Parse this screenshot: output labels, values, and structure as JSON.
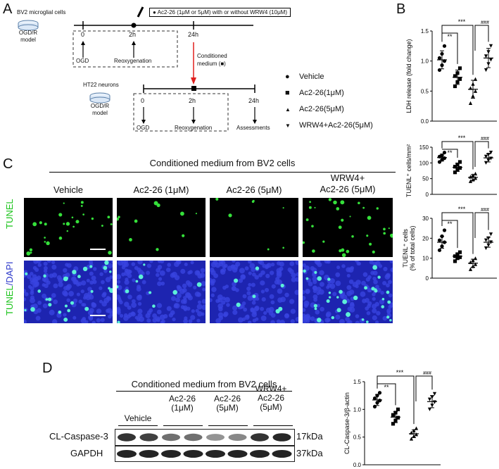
{
  "panels": {
    "a": "A",
    "b": "B",
    "c": "C",
    "d": "D"
  },
  "panel_a": {
    "bv2_title": "BV2 microglial cells",
    "bv2_model": "OGD/R\nmodel",
    "treatment": "Ac2-26 (1μM or 5μM) with or without WRW4 (10μM)",
    "t0": "0",
    "t2h": "2h",
    "t24h": "24h",
    "ogd": "OGD",
    "reox": "Reoxygenation",
    "conditioned": "Conditioned\nmedium (■)",
    "ht22_title": "HT22 neurons",
    "ht22_model": "OGD/R\nmodel",
    "b_t0": "0",
    "b_t2h": "2h",
    "b_t24h": "24h",
    "b_ogd": "OGD",
    "b_reox": "Reoxygenation",
    "assess": "Assessments",
    "legend": [
      {
        "marker": "●",
        "label": "Vehicle"
      },
      {
        "marker": "■",
        "label": "Ac2-26(1μM)"
      },
      {
        "marker": "▲",
        "label": "Ac2-26(5μM)"
      },
      {
        "marker": "▼",
        "label": "WRW4+Ac2-26(5μM)"
      }
    ]
  },
  "panel_c": {
    "header": "Conditioned medium from BV2 cells",
    "columns": [
      "Vehicle",
      "Ac2-26 (1μM)",
      "Ac2-26 (5μM)",
      "WRW4+\nAc2-26 (5μM)"
    ],
    "row1_label": "TUNEL",
    "row2_label_a": "TUNEL",
    "row2_label_b": "/DAPI"
  },
  "panel_d": {
    "header": "Conditioned medium from BV2 cells",
    "columns": [
      "Vehicle",
      "Ac2-26\n(1μM)",
      "Ac2-26\n(5μM)",
      "WRW4+\nAc2-26\n(5μM)"
    ],
    "row1": "CL-Caspase-3",
    "row1_kda": "17kDa",
    "row2": "GAPDH",
    "row2_kda": "37kDa"
  },
  "chart_data": [
    {
      "type": "scatter",
      "ylabel": "LDH release (fold change)",
      "ylim": [
        0,
        1.5
      ],
      "ticks": [
        "0.0",
        "0.5",
        "1.0",
        "1.5"
      ],
      "groups": [
        "Vehicle",
        "Ac2-26(1μM)",
        "Ac2-26(5μM)",
        "WRW4+Ac2-26(5μM)"
      ],
      "means": [
        1.02,
        0.73,
        0.53,
        1.05
      ],
      "sd": [
        0.15,
        0.12,
        0.15,
        0.16
      ],
      "points": [
        [
          0.85,
          0.93,
          1.0,
          1.05,
          1.12,
          1.25
        ],
        [
          0.58,
          0.65,
          0.7,
          0.75,
          0.8,
          0.88
        ],
        [
          0.3,
          0.42,
          0.5,
          0.55,
          0.62,
          0.7
        ],
        [
          0.85,
          0.95,
          1.02,
          1.08,
          1.15,
          1.25
        ]
      ],
      "sig": [
        "**",
        "***",
        "###"
      ]
    },
    {
      "type": "scatter",
      "ylabel": "TUENL⁺ cells/mm²",
      "ylim": [
        0,
        150
      ],
      "ticks": [
        "0",
        "50",
        "100",
        "150"
      ],
      "means": [
        117,
        86,
        54,
        116
      ],
      "sd": [
        11,
        13,
        9,
        13
      ],
      "points": [
        [
          103,
          110,
          115,
          120,
          124,
          133
        ],
        [
          70,
          78,
          84,
          88,
          95,
          103
        ],
        [
          42,
          47,
          52,
          56,
          61,
          66
        ],
        [
          100,
          108,
          114,
          120,
          126,
          133
        ]
      ],
      "sig": [
        "**",
        "***",
        "###"
      ]
    },
    {
      "type": "scatter",
      "ylabel": "TUENL⁺ cells\n(% of total cells)",
      "ylim": [
        0,
        30
      ],
      "ticks": [
        "0",
        "10",
        "20",
        "30"
      ],
      "means": [
        18,
        11,
        7.5,
        18
      ],
      "sd": [
        3,
        1.5,
        2,
        2.5
      ],
      "points": [
        [
          14,
          16,
          18,
          19,
          21,
          24
        ],
        [
          8.5,
          10,
          10.5,
          11,
          12,
          13
        ],
        [
          4.5,
          6,
          7,
          8,
          9,
          10
        ],
        [
          15,
          16.5,
          18,
          19,
          20,
          22
        ]
      ],
      "sig": [
        "**",
        "***",
        "###"
      ]
    },
    {
      "type": "scatter",
      "ylabel": "CL-Caspase-3/β-actin",
      "ylim": [
        0,
        1.5
      ],
      "ticks": [
        "0.0",
        "0.5",
        "1.0",
        "1.5"
      ],
      "means": [
        1.17,
        0.86,
        0.56,
        1.14
      ],
      "sd": [
        0.1,
        0.1,
        0.07,
        0.11
      ],
      "points": [
        [
          1.05,
          1.12,
          1.16,
          1.2,
          1.25,
          1.3
        ],
        [
          0.74,
          0.8,
          0.85,
          0.9,
          0.94,
          1.0
        ],
        [
          0.47,
          0.52,
          0.55,
          0.58,
          0.62,
          0.66
        ],
        [
          1.0,
          1.07,
          1.13,
          1.18,
          1.22,
          1.28
        ]
      ],
      "sig": [
        "**",
        "***",
        "###"
      ]
    }
  ]
}
